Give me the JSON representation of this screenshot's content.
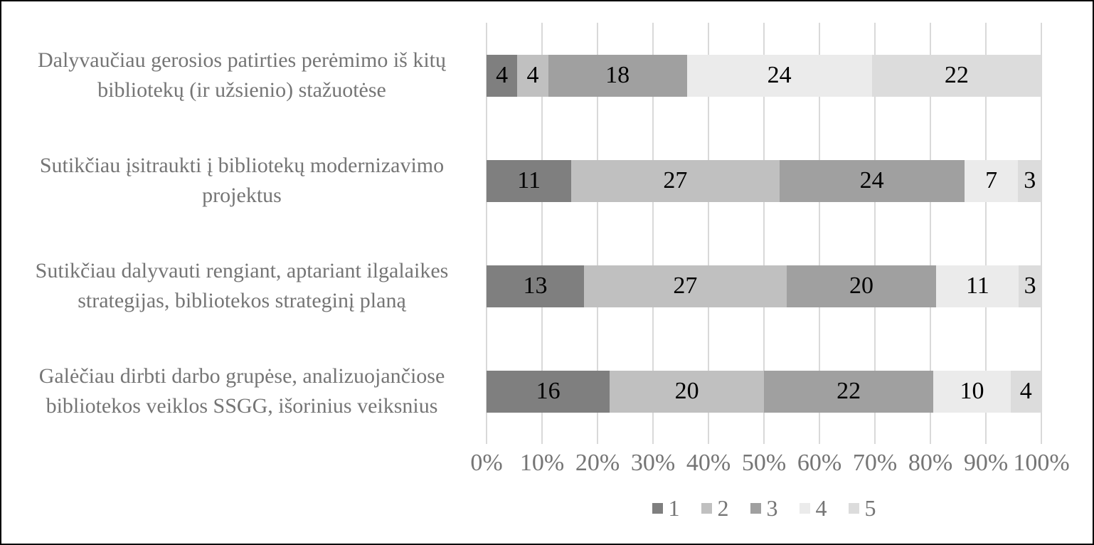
{
  "chart_data": {
    "type": "bar",
    "orientation": "horizontal",
    "stacked": true,
    "axis_format": "percent",
    "title": "",
    "xlabel": "",
    "ylabel": "",
    "x_range": [
      0,
      100
    ],
    "grid": true,
    "categories": [
      "Dalyvaučiau gerosios patirties perėmimo iš kitų bibliotekų (ir užsienio) stažuotėse",
      "Sutikčiau įsitraukti į bibliotekų modernizavimo projektus",
      "Sutikčiau dalyvauti rengiant, aptariant ilgalaikes strategijas, bibliotekos strateginį planą",
      "Galėčiau dirbti darbo grupėse, analizuojančiose bibliotekos veiklos SSGG, išorinius veiksnius"
    ],
    "series": [
      {
        "name": "1",
        "color": "#7f7f7f",
        "values": [
          4,
          11,
          13,
          16
        ]
      },
      {
        "name": "2",
        "color": "#c0c0c0",
        "values": [
          4,
          27,
          27,
          20
        ]
      },
      {
        "name": "3",
        "color": "#a0a0a0",
        "values": [
          18,
          24,
          20,
          22
        ]
      },
      {
        "name": "4",
        "color": "#ebebeb",
        "values": [
          24,
          7,
          11,
          10
        ]
      },
      {
        "name": "5",
        "color": "#dcdcdc",
        "values": [
          22,
          3,
          3,
          4
        ]
      }
    ],
    "row_segment_labels": [
      [
        "4",
        "4",
        "18",
        "24",
        "22"
      ],
      [
        "11",
        "27",
        "24",
        "7",
        "3"
      ],
      [
        "13",
        "27",
        "20",
        "11",
        "3"
      ],
      [
        "16",
        "20",
        "22",
        "10",
        "4"
      ]
    ],
    "x_ticks": [
      "0%",
      "10%",
      "20%",
      "30%",
      "40%",
      "50%",
      "60%",
      "70%",
      "80%",
      "90%",
      "100%"
    ],
    "legend": {
      "position": "bottom",
      "entries": [
        "1",
        "2",
        "3",
        "4",
        "5"
      ]
    },
    "colors": {
      "data_label": "#000000",
      "axis_text": "#757575",
      "category_text": "#757575",
      "legend_text": "#757575",
      "gridline": "#d9d9d9",
      "background": "#ffffff",
      "figure_border": "#000000"
    }
  }
}
